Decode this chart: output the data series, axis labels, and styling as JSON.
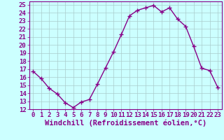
{
  "x": [
    0,
    1,
    2,
    3,
    4,
    5,
    6,
    7,
    8,
    9,
    10,
    11,
    12,
    13,
    14,
    15,
    16,
    17,
    18,
    19,
    20,
    21,
    22,
    23
  ],
  "y": [
    16.7,
    15.8,
    14.6,
    13.9,
    12.8,
    12.2,
    12.9,
    13.2,
    15.1,
    17.1,
    19.1,
    21.3,
    23.6,
    24.3,
    24.6,
    24.9,
    24.1,
    24.6,
    23.2,
    22.3,
    19.8,
    17.1,
    16.8,
    14.7
  ],
  "line_color": "#880088",
  "marker": "+",
  "marker_size": 4,
  "background_color": "#ccffff",
  "grid_color": "#aacccc",
  "xlabel": "Windchill (Refroidissement éolien,°C)",
  "xlim": [
    -0.5,
    23.5
  ],
  "ylim": [
    12,
    25.4
  ],
  "yticks": [
    12,
    13,
    14,
    15,
    16,
    17,
    18,
    19,
    20,
    21,
    22,
    23,
    24,
    25
  ],
  "xticks": [
    0,
    1,
    2,
    3,
    4,
    5,
    6,
    7,
    8,
    9,
    10,
    11,
    12,
    13,
    14,
    15,
    16,
    17,
    18,
    19,
    20,
    21,
    22,
    23
  ],
  "tick_label_size": 6.5,
  "xlabel_size": 7.5,
  "xlabel_color": "#880088",
  "tick_color": "#880088",
  "axis_color": "#880088",
  "linewidth": 1.0,
  "markeredgewidth": 1.0
}
